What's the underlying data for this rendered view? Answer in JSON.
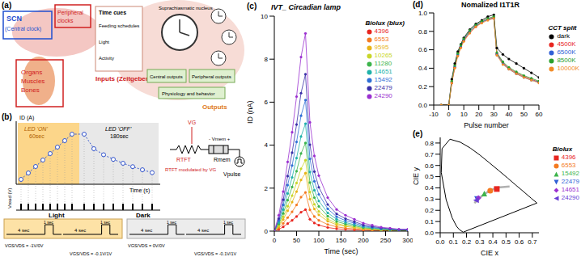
{
  "panels": {
    "a": {
      "label": "(a)",
      "scn": "SCN",
      "scn_sub": "(Central clock)",
      "peripheral": "Peripheral clocks",
      "organs": "Organs Muscles Bones",
      "inputs": "Inputs (Zeitgebers)",
      "outputs": "Outputs",
      "time_cues": "Time cues",
      "cues": [
        "Feeding schedules",
        "Light",
        "Activity"
      ],
      "scn_box": "Suprachiasmatic nucleus",
      "central_outputs": "Central outputs",
      "peripheral_outputs": "Peripheral outputs",
      "physiology": "Physiology and behavior"
    },
    "b": {
      "label": "(b)",
      "y_label": "ID (A)",
      "on": "LED 'ON'",
      "on_time": "60sec",
      "off": "LED 'OFF'",
      "off_time": "180sec",
      "x_label": "Time (s)",
      "vread": "Vread (V)",
      "vg": "VG",
      "rtft": "RTFT",
      "vmem": "- Vmem +",
      "rmem": "Rmem",
      "vpulse": "Vpulse",
      "rtft_note": "RTFT modulated by VG",
      "light": "Light",
      "dark": "Dark",
      "long": "4 sec",
      "short": "1 sec",
      "light_bias": "VGS/VDS = -1V/0V",
      "read_bias": "VGS/VDS = -0.1V/1V",
      "dark_bias": "VGS/VDS = 0V/0V"
    },
    "c": {
      "label": "(c)"
    },
    "d": {
      "label": "(d)"
    },
    "e": {
      "label": "(e)"
    }
  },
  "chart_data": [
    {
      "type": "line",
      "title": "IVT_ Circadian lamp",
      "x_label": "Time (sec)",
      "y_label": "ID (nA)",
      "legend_title": "Biolux (blux)",
      "legend": "upper right",
      "marker": "circle",
      "x": [
        0,
        10,
        20,
        30,
        40,
        50,
        60,
        70,
        80,
        90,
        100,
        120,
        140,
        160,
        180,
        200,
        220,
        240,
        260,
        280,
        300
      ],
      "xlim": [
        0,
        300
      ],
      "xticks": [
        0,
        50,
        100,
        150,
        200,
        250,
        300
      ],
      "ylim": [
        0,
        10
      ],
      "yticks": [
        0,
        2,
        4,
        6,
        8,
        10
      ],
      "series": [
        {
          "name": "4396",
          "color": "#e8251f",
          "values": [
            0,
            0.08,
            0.2,
            0.35,
            0.5,
            0.68,
            0.88,
            1.0,
            0.55,
            0.38,
            0.28,
            0.17,
            0.11,
            0.08,
            0.06,
            0.04,
            0.03,
            0.02,
            0.02,
            0.01,
            0.01
          ]
        },
        {
          "name": "6553",
          "color": "#f47a20",
          "values": [
            0,
            0.14,
            0.36,
            0.63,
            0.9,
            1.22,
            1.58,
            1.8,
            0.99,
            0.68,
            0.5,
            0.31,
            0.2,
            0.14,
            0.11,
            0.07,
            0.05,
            0.04,
            0.03,
            0.02,
            0.02
          ]
        },
        {
          "name": "9595",
          "color": "#e8b418",
          "values": [
            0,
            0.22,
            0.54,
            0.95,
            1.35,
            1.84,
            2.38,
            2.7,
            1.49,
            1.03,
            0.76,
            0.46,
            0.3,
            0.22,
            0.16,
            0.11,
            0.08,
            0.05,
            0.04,
            0.03,
            0.03
          ]
        },
        {
          "name": "10265",
          "color": "#c8d62a",
          "values": [
            0,
            0.26,
            0.66,
            1.16,
            1.65,
            2.24,
            2.9,
            3.3,
            1.82,
            1.25,
            0.92,
            0.56,
            0.36,
            0.26,
            0.2,
            0.13,
            0.1,
            0.07,
            0.05,
            0.03,
            0.03
          ]
        },
        {
          "name": "11280",
          "color": "#3cb44b",
          "values": [
            0,
            0.33,
            0.82,
            1.44,
            2.05,
            2.79,
            3.61,
            4.1,
            2.26,
            1.56,
            1.15,
            0.7,
            0.45,
            0.33,
            0.25,
            0.16,
            0.12,
            0.08,
            0.06,
            0.04,
            0.04
          ]
        },
        {
          "name": "14651",
          "color": "#20b2aa",
          "values": [
            0,
            0.4,
            1.0,
            1.75,
            2.5,
            3.4,
            4.4,
            5.0,
            2.75,
            1.9,
            1.4,
            0.85,
            0.55,
            0.4,
            0.3,
            0.2,
            0.15,
            0.1,
            0.08,
            0.05,
            0.05
          ]
        },
        {
          "name": "15492",
          "color": "#2f6fd6",
          "values": [
            0,
            0.49,
            1.22,
            2.14,
            3.05,
            4.15,
            5.37,
            6.1,
            3.36,
            2.32,
            1.71,
            1.04,
            0.67,
            0.49,
            0.37,
            0.24,
            0.18,
            0.12,
            0.09,
            0.06,
            0.06
          ]
        },
        {
          "name": "22479",
          "color": "#3a2fa8",
          "values": [
            0,
            0.58,
            1.46,
            2.56,
            3.65,
            4.96,
            6.42,
            7.3,
            4.02,
            2.77,
            2.04,
            1.24,
            0.8,
            0.58,
            0.44,
            0.29,
            0.22,
            0.15,
            0.11,
            0.07,
            0.07
          ]
        },
        {
          "name": "24290",
          "color": "#9b30d0",
          "values": [
            0,
            0.74,
            1.84,
            3.22,
            4.6,
            6.26,
            8.1,
            9.2,
            5.06,
            3.5,
            2.58,
            1.56,
            1.01,
            0.74,
            0.55,
            0.37,
            0.28,
            0.18,
            0.14,
            0.09,
            0.09
          ]
        }
      ]
    },
    {
      "type": "line",
      "title": "Nomalized I1T1R",
      "x_label": "Pulse number",
      "legend_title": "CCT split",
      "legend": "right",
      "marker": "circle",
      "x": [
        -5,
        0,
        2,
        4,
        6,
        8,
        10,
        14,
        18,
        22,
        26,
        30,
        32,
        36,
        40,
        45,
        50,
        55,
        60
      ],
      "xlim": [
        -10,
        60
      ],
      "xticks": [
        -10,
        0,
        10,
        20,
        30,
        40,
        50,
        60
      ],
      "ylim": [
        0,
        1
      ],
      "yticks": [
        {
          "value": 0,
          "label": "0.0"
        },
        {
          "value": 0.2,
          "label": "0.2"
        },
        {
          "value": 0.4,
          "label": "0.4"
        },
        {
          "value": 0.6,
          "label": "0.6"
        },
        {
          "value": 0.8,
          "label": "0.8"
        },
        {
          "value": 1,
          "label": "1.0"
        }
      ],
      "series": [
        {
          "name": "dark",
          "color": "#000000",
          "values": [
            0,
            0,
            0.28,
            0.45,
            0.58,
            0.66,
            0.73,
            0.82,
            0.88,
            0.92,
            0.96,
            0.98,
            0.62,
            0.55,
            0.5,
            0.45,
            0.4,
            0.35,
            0.3
          ]
        },
        {
          "name": "4500K",
          "color": "#e8251f",
          "values": [
            0,
            0,
            0.24,
            0.41,
            0.54,
            0.63,
            0.7,
            0.79,
            0.85,
            0.9,
            0.93,
            0.95,
            0.56,
            0.46,
            0.4,
            0.35,
            0.31,
            0.28,
            0.25
          ]
        },
        {
          "name": "6500K",
          "color": "#2f5fd6",
          "values": [
            0,
            0,
            0.25,
            0.42,
            0.55,
            0.64,
            0.71,
            0.8,
            0.86,
            0.9,
            0.93,
            0.94,
            0.55,
            0.45,
            0.39,
            0.34,
            0.3,
            0.27,
            0.25
          ]
        },
        {
          "name": "8500K",
          "color": "#2ca02c",
          "values": [
            0,
            0,
            0.26,
            0.43,
            0.56,
            0.65,
            0.72,
            0.81,
            0.87,
            0.91,
            0.94,
            0.96,
            0.57,
            0.47,
            0.41,
            0.36,
            0.32,
            0.29,
            0.26
          ]
        },
        {
          "name": "10000K",
          "color": "#f28c28",
          "values": [
            0,
            0,
            0.24,
            0.4,
            0.53,
            0.62,
            0.69,
            0.78,
            0.85,
            0.89,
            0.92,
            0.94,
            0.54,
            0.44,
            0.39,
            0.34,
            0.3,
            0.27,
            0.24
          ]
        }
      ]
    },
    {
      "type": "scatter",
      "x_label": "CIE x",
      "y_label": "CIE y",
      "legend_title": "Biolux",
      "legend": "right",
      "xlim": [
        0,
        0.75
      ],
      "xticks": [
        {
          "value": 0,
          "label": "0.0"
        },
        {
          "value": 0.1,
          "label": "0.1"
        },
        {
          "value": 0.2,
          "label": "0.2"
        },
        {
          "value": 0.3,
          "label": "0.3"
        },
        {
          "value": 0.4,
          "label": "0.4"
        },
        {
          "value": 0.5,
          "label": "0.5"
        },
        {
          "value": 0.6,
          "label": "0.6"
        },
        {
          "value": 0.7,
          "label": "0.7"
        }
      ],
      "ylim": [
        0,
        0.85
      ],
      "yticks": [
        {
          "value": 0,
          "label": "0.0"
        },
        {
          "value": 0.1,
          "label": "0.1"
        },
        {
          "value": 0.2,
          "label": "0.2"
        },
        {
          "value": 0.3,
          "label": "0.3"
        },
        {
          "value": 0.4,
          "label": "0.4"
        },
        {
          "value": 0.5,
          "label": "0.5"
        },
        {
          "value": 0.6,
          "label": "0.6"
        },
        {
          "value": 0.7,
          "label": "0.7"
        },
        {
          "value": 0.8,
          "label": "0.8"
        }
      ],
      "locus": {
        "x": [
          0.1741,
          0.144,
          0.124,
          0.091,
          0.045,
          0.008,
          0.014,
          0.074,
          0.155,
          0.23,
          0.302,
          0.373,
          0.444,
          0.513,
          0.575,
          0.627,
          0.691,
          0.735,
          0.1741
        ],
        "y": [
          0.005,
          0.03,
          0.058,
          0.133,
          0.295,
          0.538,
          0.75,
          0.834,
          0.806,
          0.754,
          0.692,
          0.624,
          0.555,
          0.487,
          0.424,
          0.373,
          0.308,
          0.265,
          0.005
        ]
      },
      "planckian": {
        "x": [
          0.527,
          0.437,
          0.38,
          0.345,
          0.313,
          0.281,
          0.26
        ],
        "y": [
          0.413,
          0.404,
          0.377,
          0.352,
          0.324,
          0.288,
          0.265
        ]
      },
      "series": [
        {
          "name": "4396",
          "color": "#e8251f",
          "marker": "square",
          "x": [
            0.43
          ],
          "y": [
            0.39
          ]
        },
        {
          "name": "6553",
          "color": "#f47a20",
          "marker": "circle",
          "x": [
            0.38
          ],
          "y": [
            0.375
          ]
        },
        {
          "name": "15492",
          "color": "#3cb44b",
          "marker": "triangle",
          "x": [
            0.335
          ],
          "y": [
            0.35
          ]
        },
        {
          "name": "22479",
          "color": "#2f5fd6",
          "marker": "triangle-down",
          "x": [
            0.28
          ],
          "y": [
            0.3
          ]
        },
        {
          "name": "14651",
          "color": "#9b30d0",
          "marker": "diamond",
          "x": [
            0.29
          ],
          "y": [
            0.31
          ]
        },
        {
          "name": "24290",
          "color": "#6a3fd6",
          "marker": "triangle-left",
          "x": [
            0.272
          ],
          "y": [
            0.29
          ]
        }
      ]
    }
  ]
}
